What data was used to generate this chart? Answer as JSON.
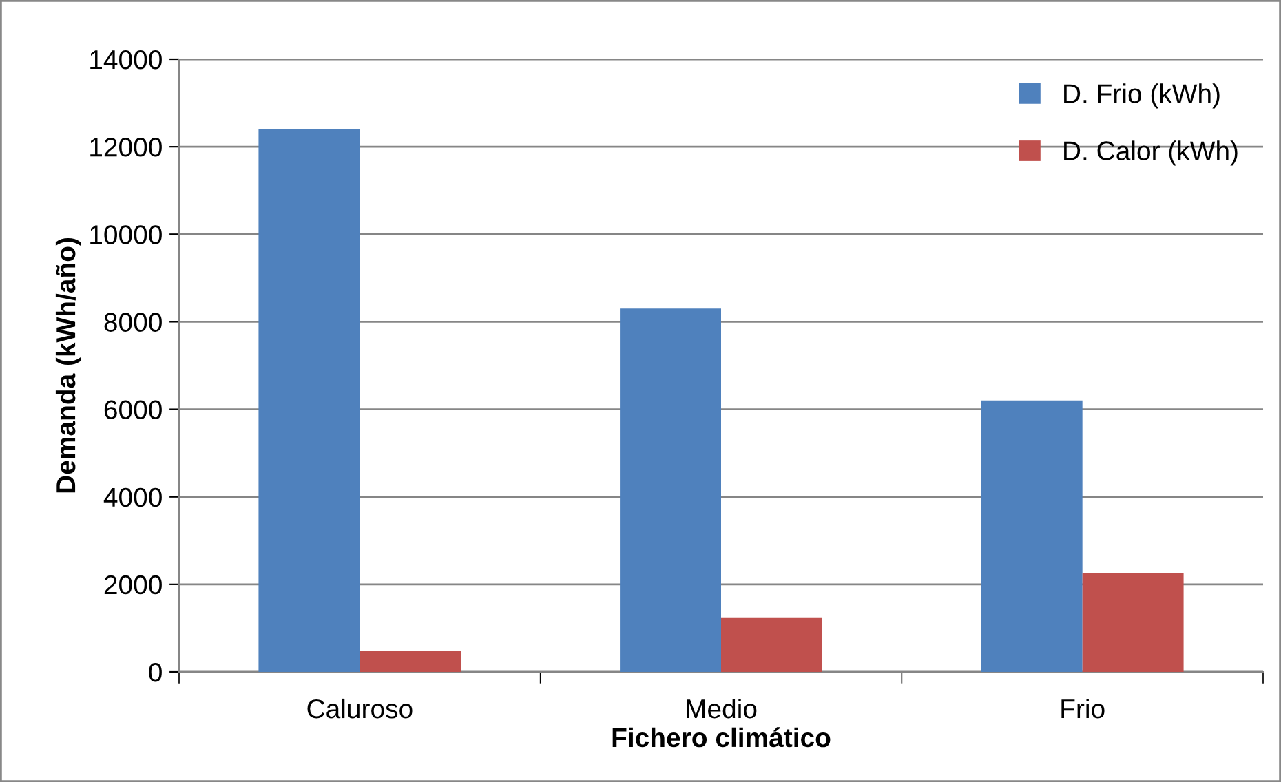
{
  "chart_data": {
    "type": "bar",
    "xlabel": "Fichero climático",
    "ylabel": "Demanda (kWh/año)",
    "categories": [
      "Caluroso",
      "Medio",
      "Frio"
    ],
    "series": [
      {
        "name": "D. Frio (kWh)",
        "color": "#4f81bd",
        "values": [
          12400,
          8300,
          6200
        ]
      },
      {
        "name": "D. Calor (kWh)",
        "color": "#c0504d",
        "values": [
          470,
          1230,
          2260
        ]
      }
    ],
    "ylim": [
      0,
      14000
    ],
    "yticks": [
      0,
      2000,
      4000,
      6000,
      8000,
      10000,
      12000,
      14000
    ],
    "grid": "y",
    "legend": "top right"
  }
}
